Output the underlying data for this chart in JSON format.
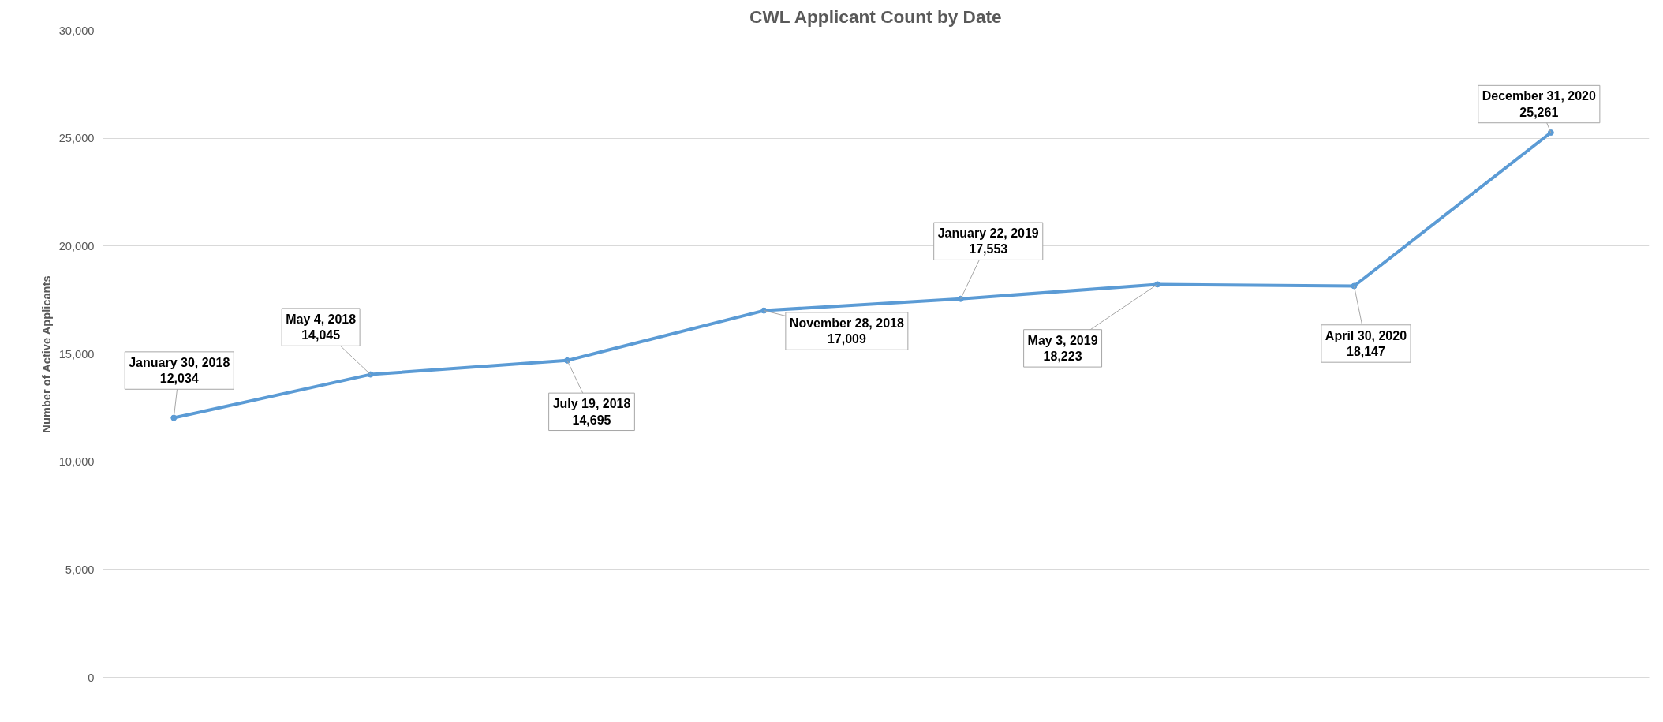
{
  "chart_data": {
    "type": "line",
    "title": "CWL Applicant Count by Date",
    "ylabel": "Number of Active Applicants",
    "categories": [
      "January 30, 2018",
      "May 4, 2018",
      "July 19, 2018",
      "November 28, 2018",
      "January 22, 2019",
      "May 3, 2019",
      "April 30, 2020",
      "December 31, 2020"
    ],
    "series": [
      {
        "color": "#5b9bd5",
        "values": [
          12034,
          14045,
          14695,
          17009,
          17553,
          18223,
          18147,
          25261
        ],
        "value_labels": [
          "12,034",
          "14,045",
          "14,695",
          "17,009",
          "17,553",
          "18,223",
          "18,147",
          "25,261"
        ]
      }
    ],
    "ylim": [
      0,
      30000
    ],
    "yticks": [
      {
        "value": 0,
        "label": "0"
      },
      {
        "value": 5000,
        "label": "5,000"
      },
      {
        "value": 10000,
        "label": "10,000"
      },
      {
        "value": 15000,
        "label": "15,000"
      },
      {
        "value": 20000,
        "label": "20,000"
      },
      {
        "value": 25000,
        "label": "25,000"
      },
      {
        "value": 30000,
        "label": "30,000"
      }
    ],
    "tick_labels": "y",
    "grid": "y",
    "marker": "circle",
    "line_style": "solid"
  }
}
